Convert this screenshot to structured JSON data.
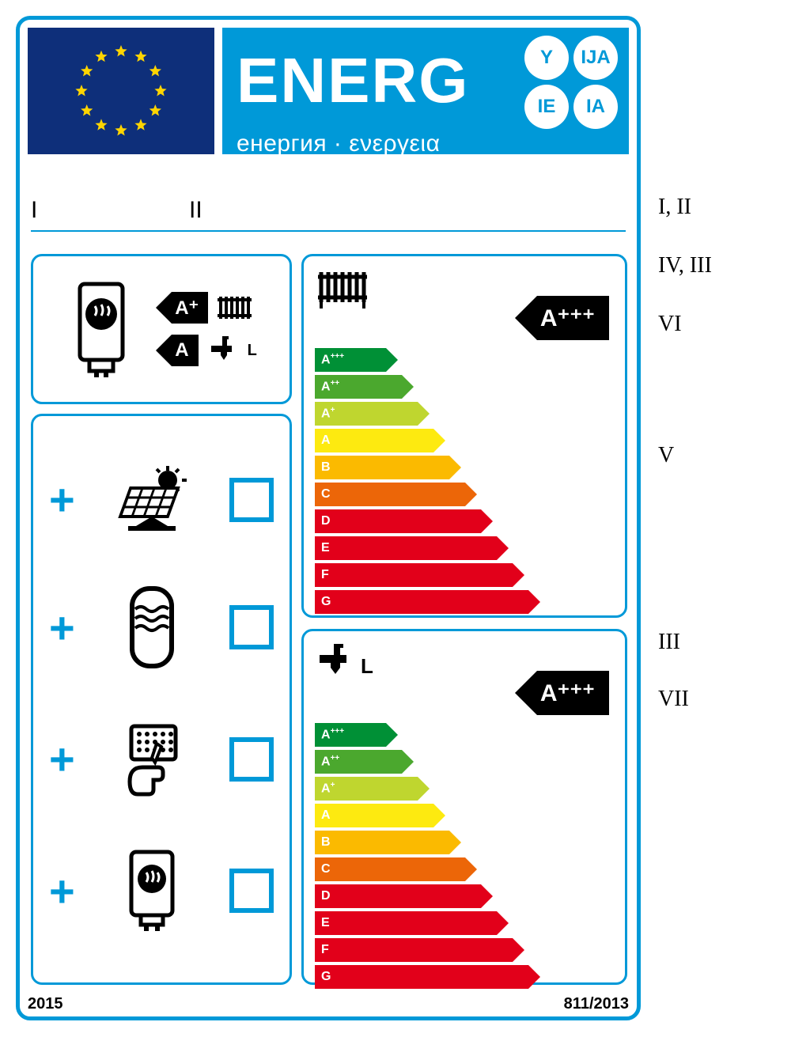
{
  "header": {
    "title": "ENERG",
    "subtitle": "енергия · ενεργεια",
    "suffixes": [
      "Y",
      "IJA",
      "IE",
      "IA"
    ],
    "flag_bg": "#0e2f7a",
    "star_color": "#ffd500",
    "banner_bg": "#0099d8"
  },
  "supplier": {
    "field1": "I",
    "field2": "II"
  },
  "heater_panel": {
    "heating_class": "A⁺",
    "water_class": "A",
    "tap_profile": "L"
  },
  "scale": {
    "classes": [
      "A+++",
      "A++",
      "A+",
      "A",
      "B",
      "C",
      "D",
      "E",
      "F",
      "G"
    ],
    "colors": [
      "#009036",
      "#4ba82e",
      "#bfd62f",
      "#fdea10",
      "#fbba00",
      "#ec6608",
      "#e2001a",
      "#e2001a",
      "#e2001a",
      "#e2001a"
    ],
    "widths": [
      90,
      110,
      130,
      150,
      170,
      190,
      210,
      230,
      250,
      270
    ],
    "rating_heating": "A⁺⁺⁺",
    "rating_water": "A⁺⁺⁺",
    "tap_profile": "L"
  },
  "components": {
    "items": [
      "solar",
      "tank",
      "control",
      "boiler"
    ]
  },
  "footer": {
    "year": "2015",
    "regulation": "811/2013"
  },
  "annotations": {
    "a1": "I, II",
    "a2": "IV, III",
    "a3": "VI",
    "a4": "V",
    "a5": "III",
    "a6": "VII"
  },
  "border_color": "#0099d8"
}
